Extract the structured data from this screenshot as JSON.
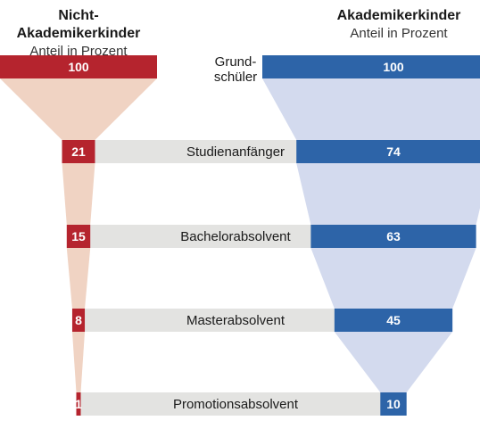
{
  "chart_data": {
    "type": "bar",
    "series": [
      {
        "name": "Nicht-Akademikerkinder",
        "unit": "Anteil in Prozent",
        "color": "#b5242e",
        "funnel_color": "#f0d3c3",
        "values": [
          100,
          21,
          15,
          8,
          1
        ]
      },
      {
        "name": "Akademikerkinder",
        "unit": "Anteil in Prozent",
        "color": "#2d64a8",
        "funnel_color": "#d3daee",
        "values": [
          100,
          74,
          63,
          45,
          10
        ]
      }
    ],
    "categories": [
      "Grund-\nschüler",
      "Studienanfänger",
      "Bachelorabsolvent",
      "Masterabsolvent",
      "Promotionsabsolvent"
    ],
    "xlim": [
      0,
      100
    ],
    "label_bar_color": "#e3e3e1"
  }
}
